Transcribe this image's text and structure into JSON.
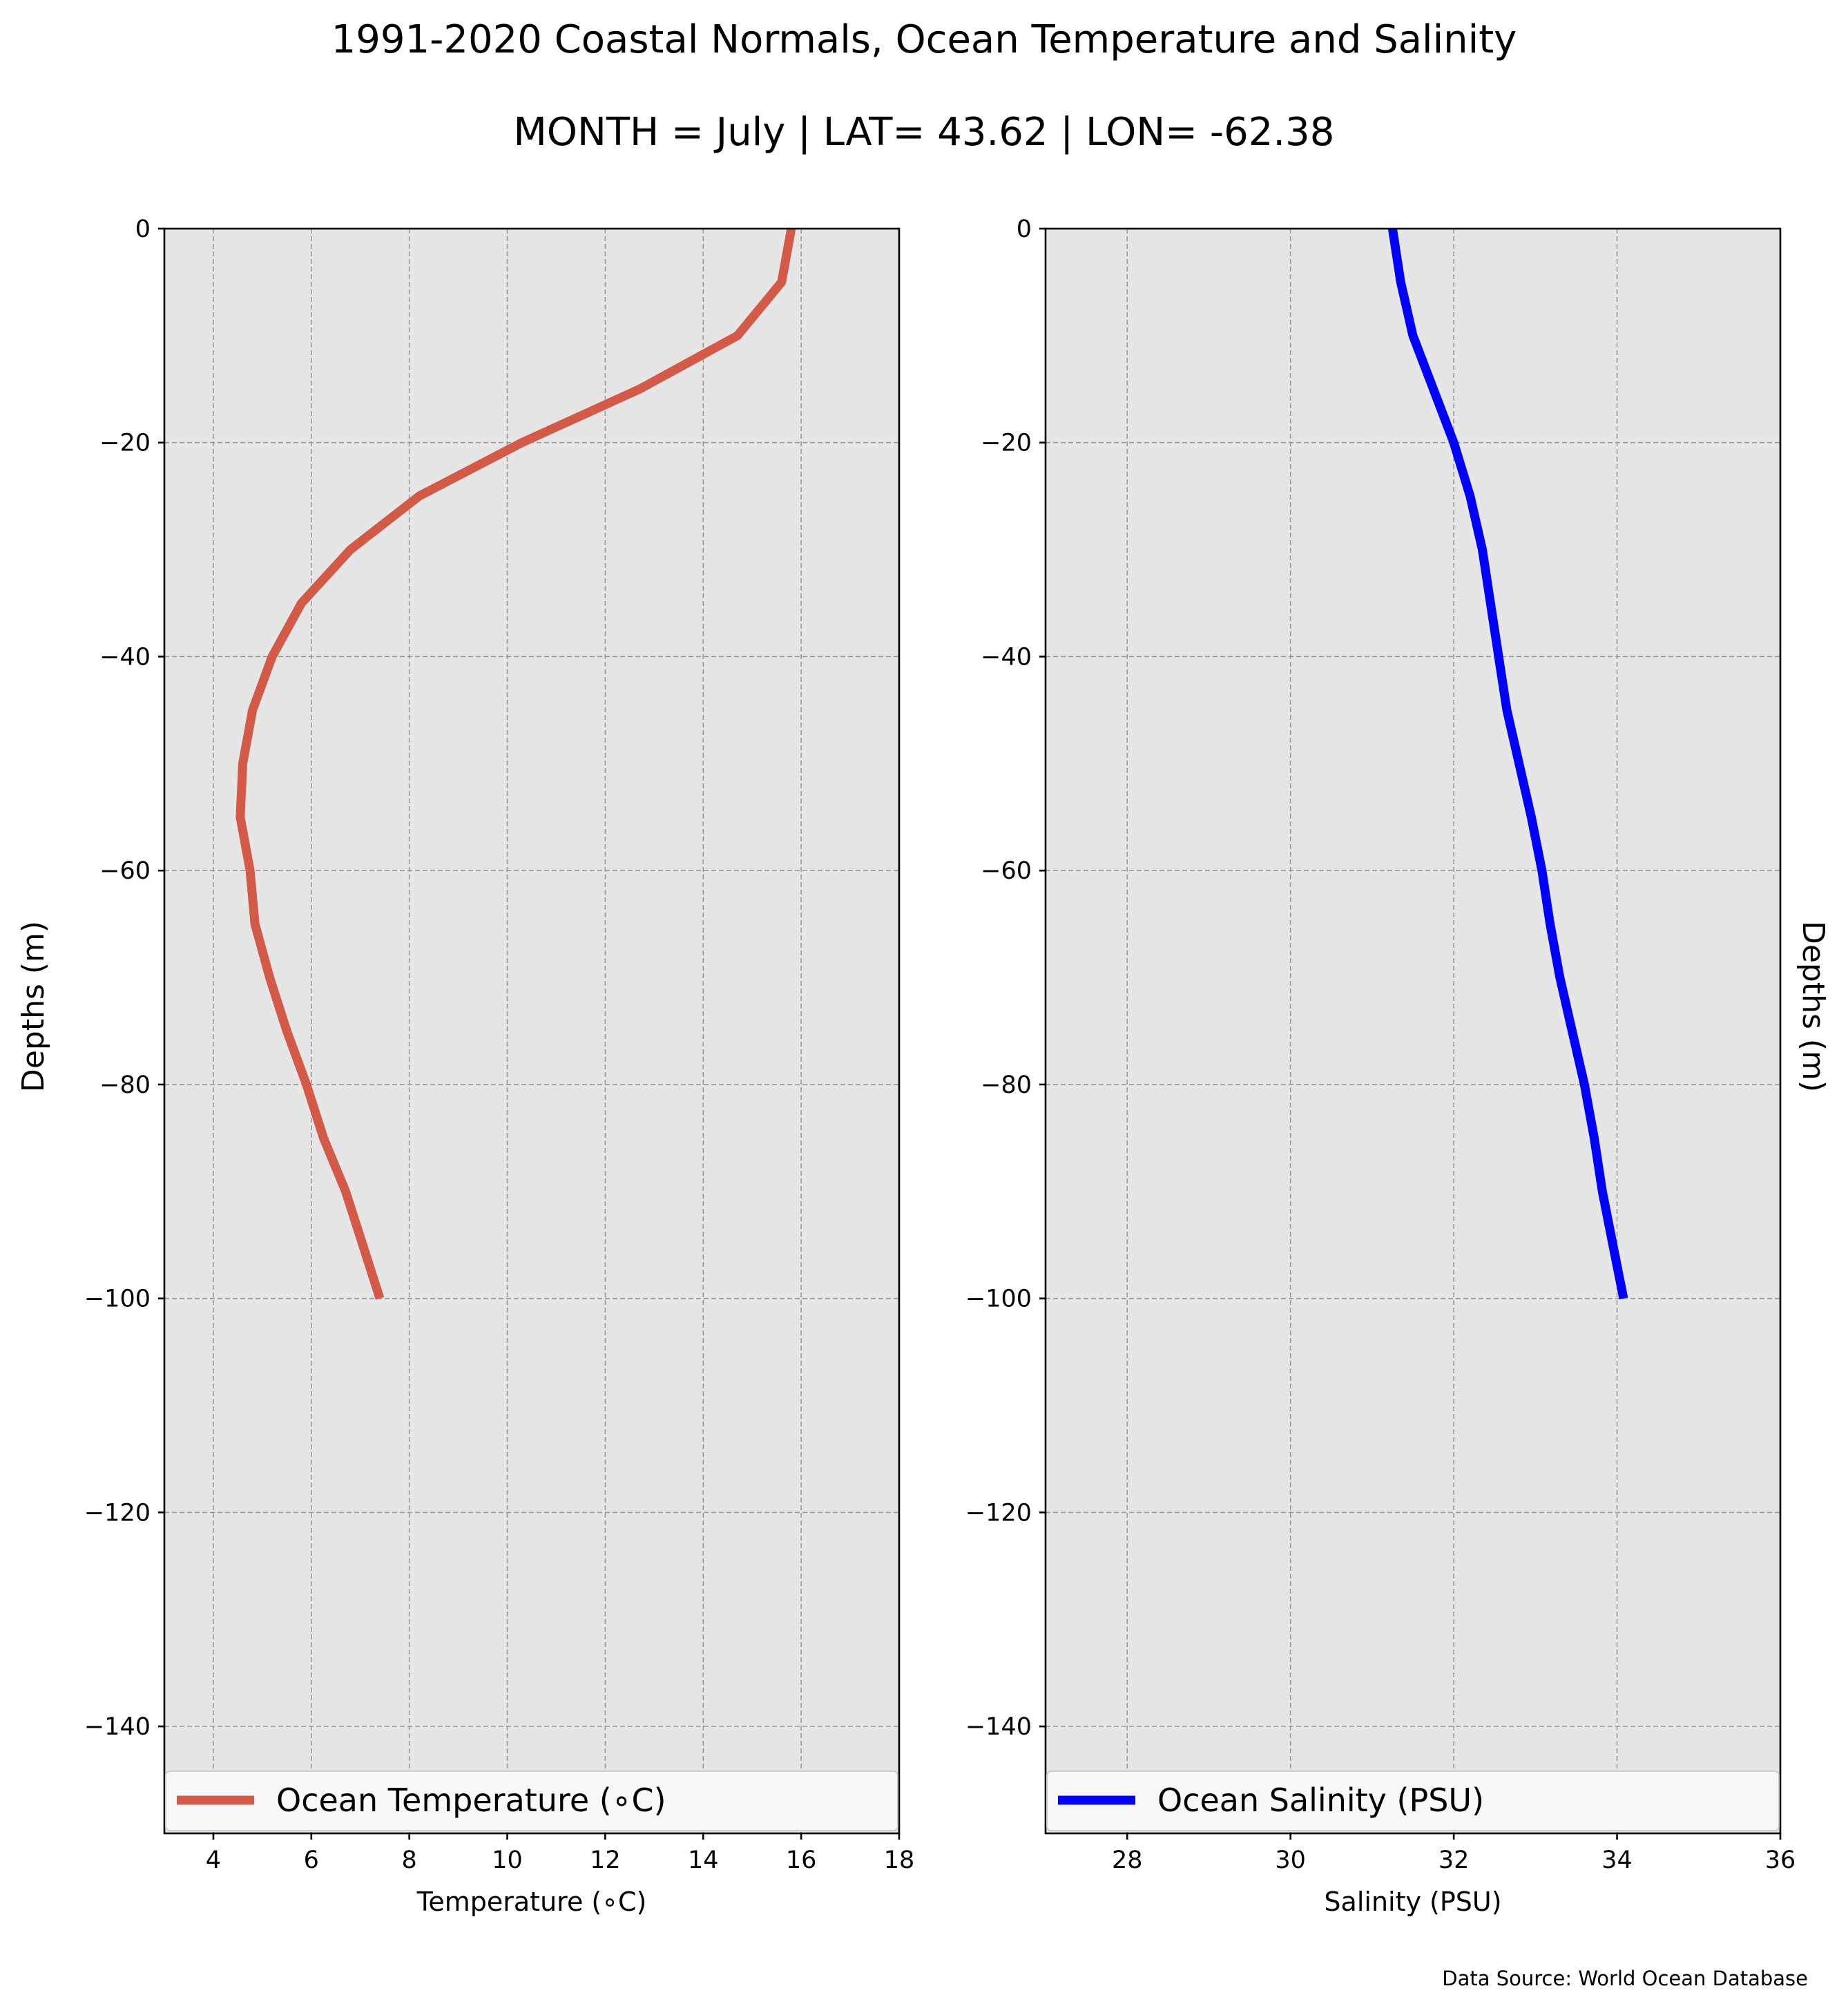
{
  "title": "1991-2020 Coastal Normals, Ocean Temperature and Salinity",
  "subtitle": "MONTH = July | LAT= 43.62 | LON= -62.38",
  "source_note": "Data Source: World Ocean Database",
  "chart_data": [
    {
      "type": "line",
      "xlabel": "Temperature (∘C)",
      "ylabel": "Depths (m)",
      "xlim": [
        3,
        18
      ],
      "ylim": [
        -150,
        0
      ],
      "xticks": [
        4,
        6,
        8,
        10,
        12,
        14,
        16,
        18
      ],
      "yticks": [
        0,
        -20,
        -40,
        -60,
        -80,
        -100,
        -120,
        -140
      ],
      "grid": true,
      "legend_position": "bottom",
      "series": [
        {
          "name": "Ocean Temperature (∘C)",
          "color": "#d45a48",
          "x": [
            15.8,
            15.6,
            14.7,
            12.7,
            10.3,
            8.2,
            6.8,
            5.8,
            5.2,
            4.8,
            4.6,
            4.55,
            4.75,
            4.85,
            5.15,
            5.5,
            5.9,
            6.25,
            6.7,
            7.05,
            7.4
          ],
          "y": [
            0,
            -5,
            -10,
            -15,
            -20,
            -25,
            -30,
            -35,
            -40,
            -45,
            -50,
            -55,
            -60,
            -65,
            -70,
            -75,
            -80,
            -85,
            -90,
            -95,
            -100
          ]
        }
      ]
    },
    {
      "type": "line",
      "xlabel": "Salinity (PSU)",
      "ylabel": "Depths (m)",
      "xlim": [
        27,
        36
      ],
      "ylim": [
        -150,
        0
      ],
      "xticks": [
        28,
        30,
        32,
        34,
        36
      ],
      "yticks": [
        0,
        -20,
        -40,
        -60,
        -80,
        -100,
        -120,
        -140
      ],
      "grid": true,
      "legend_position": "bottom",
      "series": [
        {
          "name": "Ocean Salinity (PSU)",
          "color": "#0000ff",
          "x": [
            31.25,
            31.35,
            31.5,
            31.75,
            32.0,
            32.2,
            32.35,
            32.45,
            32.55,
            32.65,
            32.8,
            32.95,
            33.08,
            33.18,
            33.3,
            33.45,
            33.6,
            33.72,
            33.82,
            33.95,
            34.08
          ],
          "y": [
            0,
            -5,
            -10,
            -15,
            -20,
            -25,
            -30,
            -35,
            -40,
            -45,
            -50,
            -55,
            -60,
            -65,
            -70,
            -75,
            -80,
            -85,
            -90,
            -95,
            -100
          ]
        }
      ]
    }
  ]
}
